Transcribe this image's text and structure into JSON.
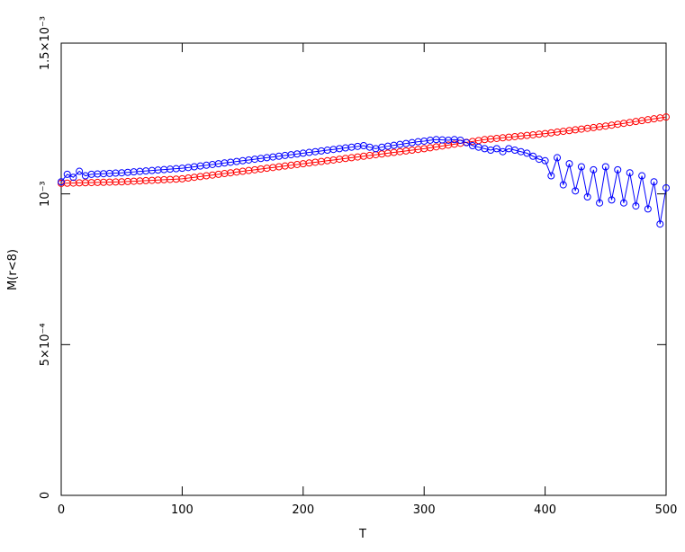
{
  "chart_data": {
    "type": "scatter",
    "xlabel": "T",
    "ylabel": "M(r<8)",
    "xlim": [
      0,
      500
    ],
    "ylim": [
      0,
      0.0015
    ],
    "xticks": [
      0,
      100,
      200,
      300,
      400,
      500
    ],
    "yticks": [
      0,
      {
        "value": 0.0005,
        "label": "5×10⁻⁴"
      },
      {
        "value": 0.001,
        "label": "10⁻³"
      },
      {
        "value": 0.0015,
        "label": "1.5×10⁻³"
      }
    ],
    "x": [
      0,
      5,
      10,
      15,
      20,
      25,
      30,
      35,
      40,
      45,
      50,
      55,
      60,
      65,
      70,
      75,
      80,
      85,
      90,
      95,
      100,
      105,
      110,
      115,
      120,
      125,
      130,
      135,
      140,
      145,
      150,
      155,
      160,
      165,
      170,
      175,
      180,
      185,
      190,
      195,
      200,
      205,
      210,
      215,
      220,
      225,
      230,
      235,
      240,
      245,
      250,
      255,
      260,
      265,
      270,
      275,
      280,
      285,
      290,
      295,
      300,
      305,
      310,
      315,
      320,
      325,
      330,
      335,
      340,
      345,
      350,
      355,
      360,
      365,
      370,
      375,
      380,
      385,
      390,
      395,
      400,
      405,
      410,
      415,
      420,
      425,
      430,
      435,
      440,
      445,
      450,
      455,
      460,
      465,
      470,
      475,
      480,
      485,
      490,
      495,
      500
    ],
    "series": [
      {
        "color": "#ff0000",
        "values": [
          0.001035,
          0.0010355,
          0.001036,
          0.0010365,
          0.001037,
          0.0010375,
          0.001038,
          0.0010385,
          0.001039,
          0.0010395,
          0.00104,
          0.001041,
          0.001042,
          0.001043,
          0.001044,
          0.001045,
          0.001046,
          0.001047,
          0.001048,
          0.001049,
          0.00105,
          0.0010525,
          0.001055,
          0.0010575,
          0.00106,
          0.0010625,
          0.001065,
          0.0010675,
          0.00107,
          0.0010725,
          0.001075,
          0.0010775,
          0.00108,
          0.0010825,
          0.001085,
          0.0010875,
          0.00109,
          0.0010925,
          0.001095,
          0.0010975,
          0.0011,
          0.0011025,
          0.001105,
          0.0011075,
          0.00111,
          0.0011125,
          0.001115,
          0.0011175,
          0.00112,
          0.0011225,
          0.001125,
          0.0011275,
          0.00113,
          0.0011325,
          0.001135,
          0.0011375,
          0.00114,
          0.0011425,
          0.001145,
          0.0011475,
          0.00115,
          0.001153,
          0.001156,
          0.001159,
          0.001162,
          0.001165,
          0.001168,
          0.001171,
          0.001174,
          0.001177,
          0.00118,
          0.001182,
          0.001184,
          0.001186,
          0.001188,
          0.00119,
          0.001192,
          0.001194,
          0.001196,
          0.001198,
          0.0012,
          0.0012025,
          0.001205,
          0.0012075,
          0.00121,
          0.0012125,
          0.001215,
          0.0012175,
          0.00122,
          0.0012225,
          0.001225,
          0.001228,
          0.001231,
          0.001234,
          0.001237,
          0.00124,
          0.001243,
          0.001246,
          0.001249,
          0.001252,
          0.001255
        ]
      },
      {
        "color": "#0000ff",
        "values": [
          0.00104,
          0.001065,
          0.001055,
          0.001075,
          0.00106,
          0.001065,
          0.001066,
          0.001067,
          0.001068,
          0.001069,
          0.00107,
          0.0010715,
          0.001073,
          0.0010745,
          0.001076,
          0.0010775,
          0.001079,
          0.0010805,
          0.001082,
          0.0010835,
          0.001085,
          0.0010875,
          0.00109,
          0.0010925,
          0.001095,
          0.0010975,
          0.0011,
          0.0011025,
          0.001105,
          0.0011075,
          0.00111,
          0.0011125,
          0.001115,
          0.0011175,
          0.00112,
          0.0011225,
          0.001125,
          0.0011275,
          0.00113,
          0.0011325,
          0.001135,
          0.0011375,
          0.00114,
          0.0011425,
          0.001145,
          0.0011475,
          0.00115,
          0.0011525,
          0.001155,
          0.0011575,
          0.00116,
          0.001155,
          0.00115,
          0.001155,
          0.001158,
          0.001161,
          0.001164,
          0.001167,
          0.00117,
          0.001173,
          0.001175,
          0.001178,
          0.00118,
          0.001179,
          0.001178,
          0.00118,
          0.001178,
          0.00117,
          0.00116,
          0.001155,
          0.00115,
          0.001145,
          0.00115,
          0.00114,
          0.00115,
          0.001145,
          0.00114,
          0.001135,
          0.001125,
          0.001115,
          0.00111,
          0.00106,
          0.00112,
          0.00103,
          0.0011,
          0.00101,
          0.00109,
          0.00099,
          0.00108,
          0.00097,
          0.00109,
          0.00098,
          0.00108,
          0.00097,
          0.00107,
          0.00096,
          0.00106,
          0.00095,
          0.00104,
          0.0009,
          0.00102
        ]
      }
    ]
  }
}
